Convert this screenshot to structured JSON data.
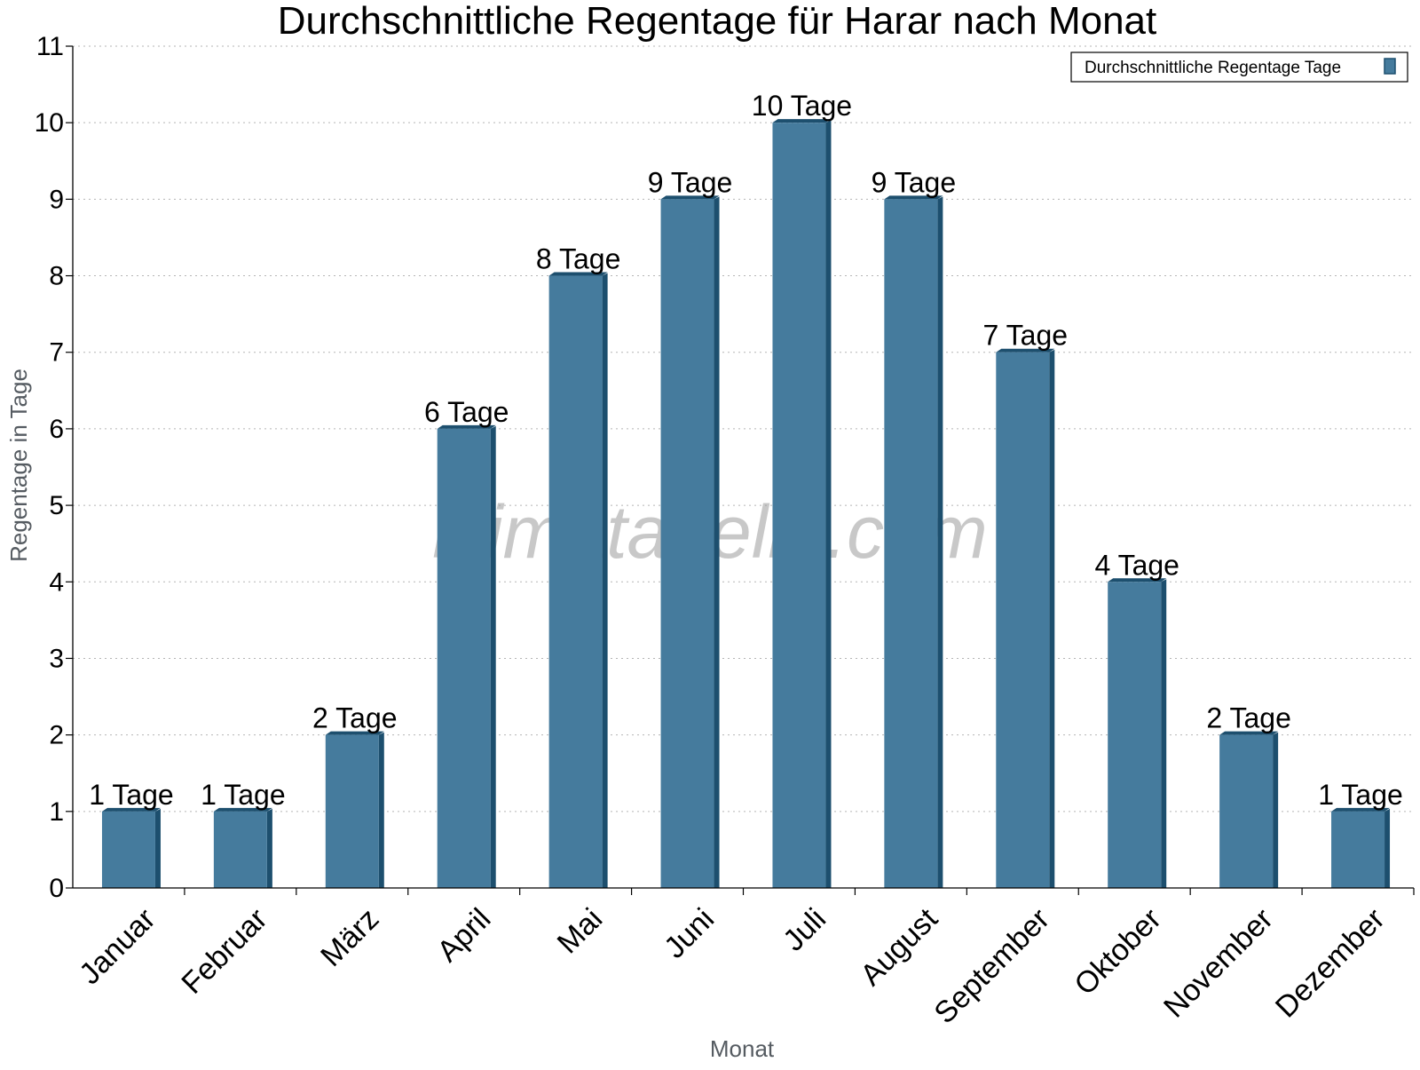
{
  "chart_data": {
    "type": "bar",
    "title": "Durchschnittliche Regentage für Harar nach Monat",
    "xlabel": "Monat",
    "ylabel": "Regentage in Tage",
    "categories": [
      "Januar",
      "Februar",
      "März",
      "April",
      "Mai",
      "Juni",
      "Juli",
      "August",
      "September",
      "Oktober",
      "November",
      "Dezember"
    ],
    "series": [
      {
        "name": "Durchschnittliche Regentage Tage",
        "values": [
          1,
          1,
          2,
          6,
          8,
          9,
          10,
          9,
          7,
          4,
          2,
          1
        ],
        "labels": [
          "1 Tage",
          "1 Tage",
          "2 Tage",
          "6 Tage",
          "8 Tage",
          "9 Tage",
          "10 Tage",
          "9 Tage",
          "7 Tage",
          "4 Tage",
          "2 Tage",
          "1 Tage"
        ],
        "color": "#457b9d",
        "side_color": "#1d4f6e"
      }
    ],
    "ylim": [
      0,
      11
    ],
    "yticks": [
      0,
      1,
      2,
      3,
      4,
      5,
      6,
      7,
      8,
      9,
      10,
      11
    ],
    "grid": true,
    "legend_position": "top-right",
    "watermark": "klimatabelle.com"
  }
}
